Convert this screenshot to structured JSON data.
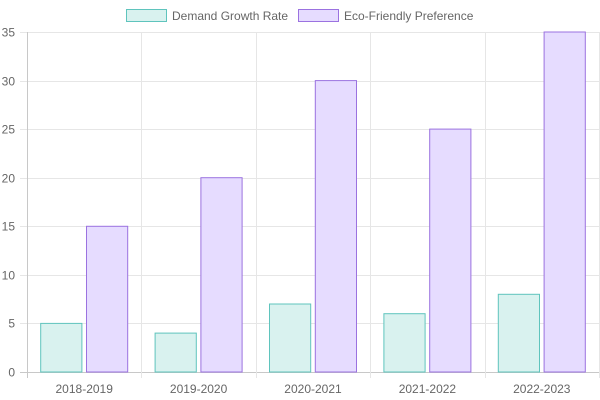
{
  "chart_data": {
    "type": "bar",
    "categories": [
      "2018-2019",
      "2019-2020",
      "2020-2021",
      "2021-2022",
      "2022-2023"
    ],
    "series": [
      {
        "name": "Demand Growth Rate",
        "values": [
          5,
          4,
          7,
          6,
          8
        ],
        "fill": "#d9f2ef",
        "stroke": "#5fc4bd"
      },
      {
        "name": "Eco-Friendly Preference",
        "values": [
          15,
          20,
          30,
          25,
          35
        ],
        "fill": "#e6dcff",
        "stroke": "#9b72e0"
      }
    ],
    "ylim": [
      0,
      35
    ],
    "yticks": [
      0,
      5,
      10,
      15,
      20,
      25,
      30,
      35
    ],
    "grid": true,
    "legend_position": "top-center",
    "title": "",
    "xlabel": "",
    "ylabel": ""
  }
}
